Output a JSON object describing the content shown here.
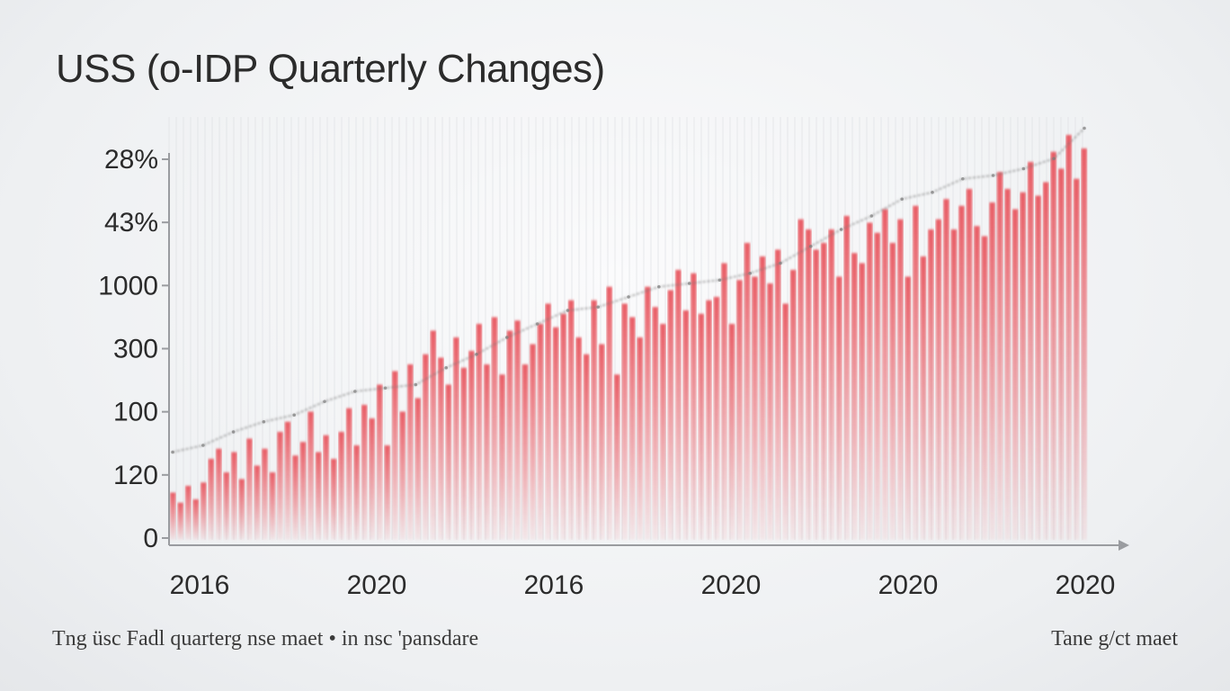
{
  "chart_data": {
    "type": "bar",
    "title": "USS (o-IDP Quarterly Changes)",
    "xlabel": "",
    "ylabel": "",
    "y_tick_labels": [
      "0",
      "120",
      "100",
      "300",
      "1000",
      "43%",
      "28%"
    ],
    "x_tick_labels": [
      "2016",
      "2020",
      "2016",
      "2020",
      "2020",
      "2020"
    ],
    "bar_color": "#e8555e",
    "trend_color": "#7a7a7a",
    "grid": true,
    "ylim": [
      0,
      6
    ],
    "values": [
      0.7,
      0.55,
      0.8,
      0.6,
      0.85,
      1.2,
      1.35,
      1.0,
      1.3,
      0.9,
      1.5,
      1.1,
      1.35,
      1.0,
      1.6,
      1.75,
      1.25,
      1.45,
      1.9,
      1.3,
      1.55,
      1.2,
      1.6,
      1.95,
      1.4,
      2.0,
      1.8,
      2.3,
      1.4,
      2.5,
      1.9,
      2.6,
      2.1,
      2.75,
      3.1,
      2.7,
      2.3,
      3.0,
      2.55,
      2.8,
      3.2,
      2.6,
      3.3,
      2.45,
      3.1,
      3.25,
      2.6,
      2.9,
      3.2,
      3.5,
      3.15,
      3.35,
      3.55,
      3.0,
      2.75,
      3.55,
      2.9,
      3.75,
      2.45,
      3.5,
      3.3,
      3.0,
      3.75,
      3.45,
      3.2,
      3.7,
      4.0,
      3.4,
      3.95,
      3.35,
      3.55,
      3.6,
      4.1,
      3.2,
      3.85,
      4.4,
      3.9,
      4.2,
      3.8,
      4.3,
      3.5,
      4.0,
      4.75,
      4.6,
      4.3,
      4.4,
      4.6,
      3.9,
      4.8,
      4.25,
      4.1,
      4.7,
      4.55,
      4.9,
      4.4,
      4.75,
      3.9,
      4.95,
      4.2,
      4.6,
      4.75,
      5.05,
      4.6,
      4.95,
      5.2,
      4.65,
      4.5,
      5.0,
      5.45,
      5.2,
      4.9,
      5.15,
      5.6,
      5.1,
      5.3,
      5.75,
      5.5,
      6.0,
      5.35,
      5.8
    ],
    "trend": [
      1.3,
      1.4,
      1.6,
      1.75,
      1.85,
      2.05,
      2.2,
      2.25,
      2.3,
      2.55,
      2.75,
      3.0,
      3.2,
      3.4,
      3.45,
      3.6,
      3.75,
      3.8,
      3.85,
      3.95,
      4.1,
      4.35,
      4.6,
      4.8,
      5.05,
      5.15,
      5.35,
      5.4,
      5.5,
      5.65,
      6.1
    ]
  },
  "footer": {
    "left": "Tng üsc Fadl quarterg nse maet • in nsc 'pansdare",
    "right": "Tane g/ct maet"
  }
}
